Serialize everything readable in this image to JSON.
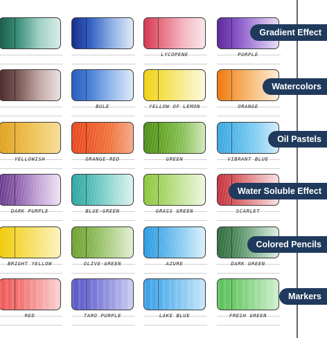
{
  "categories": [
    {
      "name": "Gradient Effect",
      "swatches": [
        {
          "label": "",
          "colors": [
            "#1d5c48",
            "#3a8f7a",
            "#9fd0c4",
            "#d9ece7"
          ]
        },
        {
          "label": "",
          "colors": [
            "#16308a",
            "#3561c4",
            "#8fb0e4",
            "#e1eaf8"
          ]
        },
        {
          "label": "LYCOPENE",
          "colors": [
            "#d33a52",
            "#e87486",
            "#f4b9c3",
            "#fbe6ea"
          ]
        },
        {
          "label": "PURPLE",
          "colors": [
            "#5e2c9a",
            "#8453c4",
            "#b999e2",
            "#e8dcf5"
          ]
        }
      ]
    },
    {
      "name": "Watercolors",
      "swatches": [
        {
          "label": "",
          "colors": [
            "#4b2e2e",
            "#7a5753",
            "#c2a8a5",
            "#ece2e1"
          ]
        },
        {
          "label": "BULE",
          "colors": [
            "#2a5fc0",
            "#4d82d6",
            "#98bbec",
            "#dfeaf9"
          ]
        },
        {
          "label": "YELLOW OF LEMON",
          "colors": [
            "#f2d21a",
            "#f5e04e",
            "#f8ec9a",
            "#fdf8dc"
          ]
        },
        {
          "label": "ORANGE",
          "colors": [
            "#f07a12",
            "#f5a04b",
            "#f8c990",
            "#fdecd9"
          ]
        }
      ]
    },
    {
      "name": "Oil Pastels",
      "swatches": [
        {
          "label": "YELLOWISH",
          "colors": [
            "#e0a020",
            "#e8b238",
            "#f0c860",
            "#f6dc98"
          ]
        },
        {
          "label": "ORANGE-RED",
          "colors": [
            "#e8481e",
            "#ed5a28",
            "#f07840",
            "#f6a888"
          ]
        },
        {
          "label": "GREEN",
          "colors": [
            "#4e8e1a",
            "#66a62a",
            "#8cc25a",
            "#d2e8bc"
          ]
        },
        {
          "label": "VIBRANT BLUE",
          "colors": [
            "#3aa6e0",
            "#56b8ea",
            "#88d0f2",
            "#d2ecfa"
          ]
        }
      ]
    },
    {
      "name": "Water Soluble Effect",
      "swatches": [
        {
          "label": "DARK PURPLE",
          "colors": [
            "#6a3a8a",
            "#8e62ae",
            "#c4a6d8",
            "#eee2f4"
          ]
        },
        {
          "label": "BLUE-GREEN",
          "colors": [
            "#2ea5a0",
            "#52bcb6",
            "#98dad4",
            "#dcf2f0"
          ]
        },
        {
          "label": "GRASS GREEN",
          "colors": [
            "#8cc63c",
            "#a6d462",
            "#c8e6a0",
            "#eef8e0"
          ]
        },
        {
          "label": "SCARLET",
          "colors": [
            "#c4303a",
            "#d65a60",
            "#e8a0a2",
            "#f8e0e0"
          ]
        }
      ]
    },
    {
      "name": "Colored Pencils",
      "swatches": [
        {
          "label": "BRIGHT YELLOW",
          "colors": [
            "#f0c800",
            "#f4d638",
            "#f8e47a",
            "#fcf2c0"
          ]
        },
        {
          "label": "OLIVE-GREEN",
          "colors": [
            "#6ea030",
            "#86b44e",
            "#b2d28c",
            "#e2efd2"
          ]
        },
        {
          "label": "AZURE",
          "colors": [
            "#2a9ae0",
            "#52b0e8",
            "#94d0f2",
            "#dcf0fb"
          ]
        },
        {
          "label": "DARK GREEN",
          "colors": [
            "#2e6a3e",
            "#4e8a5c",
            "#94bea0",
            "#dcece0"
          ]
        }
      ]
    },
    {
      "name": "Markers",
      "swatches": [
        {
          "label": "RED",
          "colors": [
            "#ee5a5a",
            "#f27070",
            "#f6a0a0",
            "#fbd2d2"
          ]
        },
        {
          "label": "TARO PURPLE",
          "colors": [
            "#5a5ac8",
            "#7070d4",
            "#9c9ce2",
            "#cccdf2"
          ]
        },
        {
          "label": "LAKE BLUE",
          "colors": [
            "#3c9ee6",
            "#5ab2ec",
            "#8ecaf2",
            "#c8e6fa"
          ]
        },
        {
          "label": "FRESH GREEN",
          "colors": [
            "#5cc05a",
            "#72cc70",
            "#9edc9c",
            "#d0f0cf"
          ]
        }
      ]
    }
  ]
}
